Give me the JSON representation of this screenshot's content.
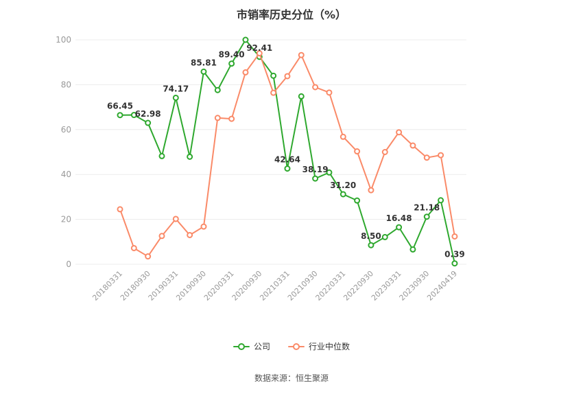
{
  "source_note": "数据来源：恒生聚源",
  "colors": {
    "company": "#2EA82E",
    "industry": "#FA8A68",
    "grid": "#ECECEC",
    "axis_label": "#999999",
    "data_label": "#333333",
    "title": "#333333"
  },
  "chart_data": {
    "type": "line",
    "title": "市销率历史分位（%）",
    "ylim": [
      0,
      100
    ],
    "yticks": [
      0,
      20,
      40,
      60,
      80,
      100
    ],
    "grid": true,
    "legend_position": "bottom",
    "x_tick_labels": [
      "20180331",
      "20180930",
      "20190331",
      "20190930",
      "20200331",
      "20200930",
      "20210331",
      "20210930",
      "20220331",
      "20220930",
      "20230331",
      "20230930",
      "20240419"
    ],
    "tick_every": 2,
    "series": [
      {
        "name": "公司",
        "color": "#2EA82E",
        "values": [
          66.45,
          66.5,
          62.98,
          48.2,
          74.17,
          47.9,
          85.81,
          77.6,
          89.4,
          100,
          92.41,
          84.0,
          42.64,
          74.8,
          38.19,
          40.9,
          31.2,
          28.4,
          8.5,
          12.1,
          16.48,
          6.6,
          21.18,
          28.5,
          0.39
        ]
      },
      {
        "name": "行业中位数",
        "color": "#FA8A68",
        "values": [
          24.5,
          7.2,
          3.5,
          12.6,
          20.2,
          13.0,
          16.8,
          65.2,
          64.8,
          85.5,
          94.0,
          76.4,
          83.8,
          93.2,
          78.9,
          76.5,
          56.8,
          50.3,
          33.0,
          50.0,
          58.8,
          52.9,
          47.5,
          48.6,
          12.4
        ]
      }
    ],
    "point_labels": [
      {
        "index": 0,
        "text": "66.45"
      },
      {
        "index": 2,
        "text": "62.98"
      },
      {
        "index": 4,
        "text": "74.17"
      },
      {
        "index": 6,
        "text": "85.81"
      },
      {
        "index": 8,
        "text": "89.40"
      },
      {
        "index": 10,
        "text": "92.41"
      },
      {
        "index": 12,
        "text": "42.64"
      },
      {
        "index": 14,
        "text": "38.19"
      },
      {
        "index": 16,
        "text": "31.20"
      },
      {
        "index": 18,
        "text": "8.50"
      },
      {
        "index": 20,
        "text": "16.48"
      },
      {
        "index": 22,
        "text": "21.18"
      },
      {
        "index": 24,
        "text": "0.39"
      }
    ]
  }
}
